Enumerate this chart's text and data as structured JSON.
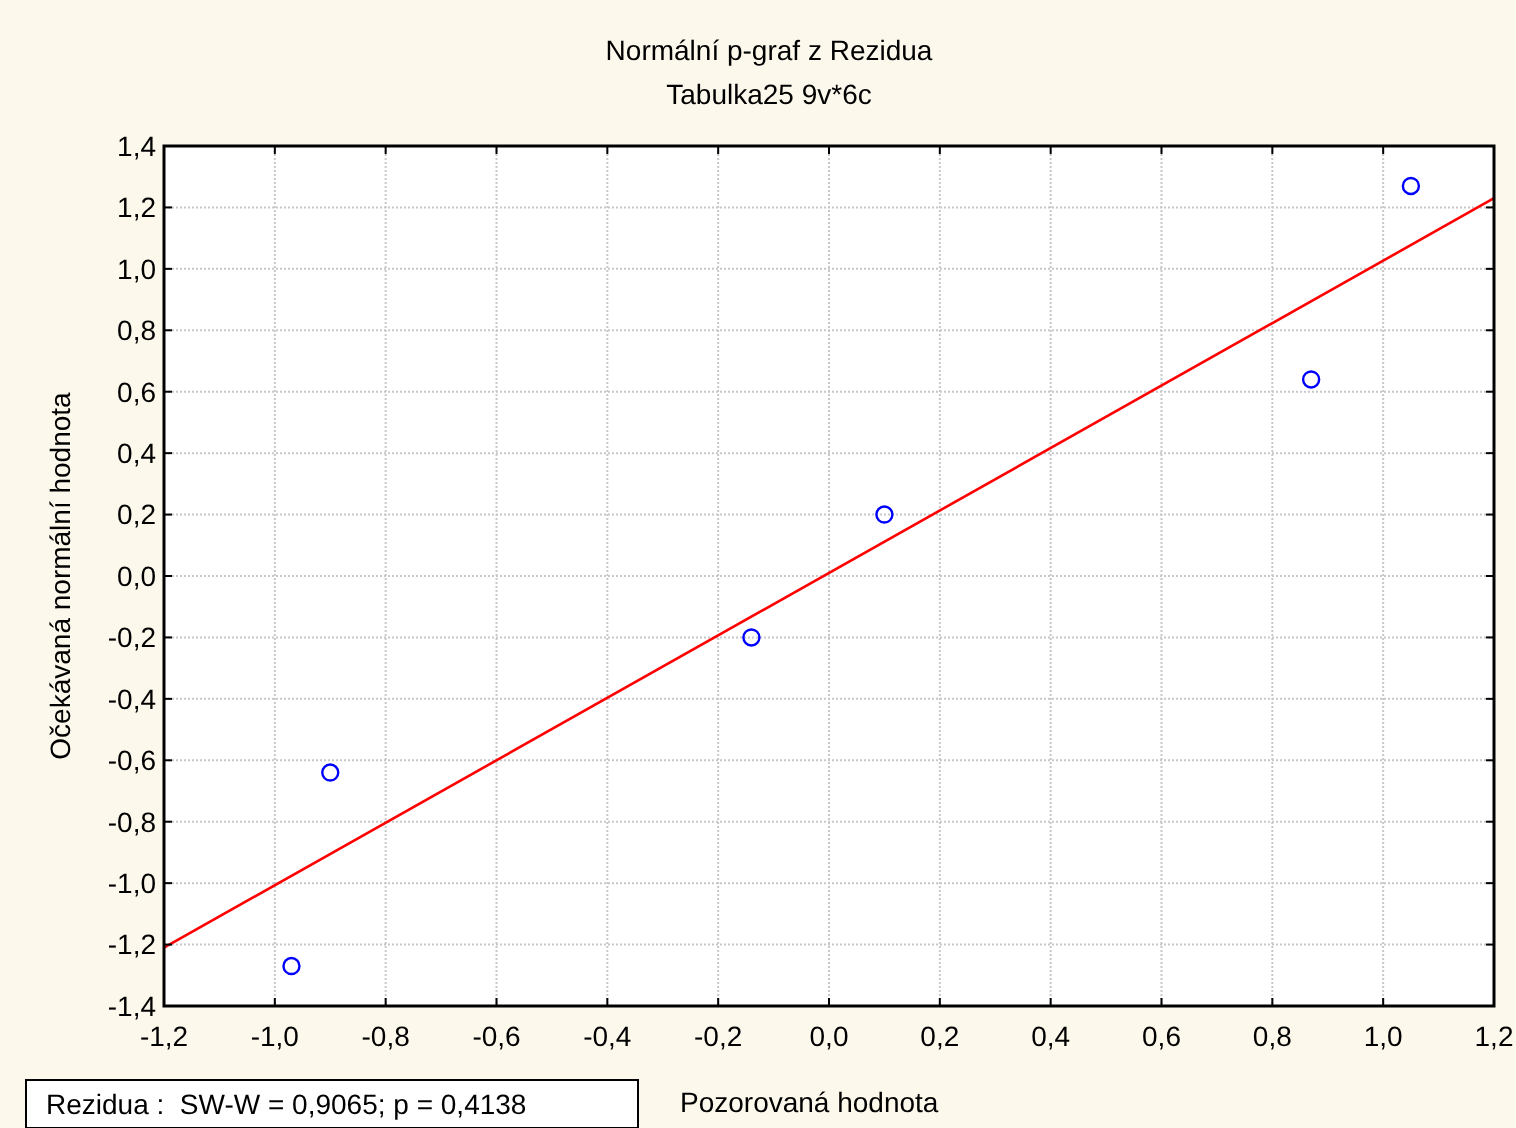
{
  "chart_data": {
    "type": "scatter",
    "title": "Normální p-graf z Rezidua",
    "subtitle": "Tabulka25 9v*6c",
    "xlabel": "Pozorovaná hodnota",
    "ylabel": "Očekávaná normální hodnota",
    "annotations": [
      "Rezidua :  SW-W = 0,9065; p = 0,4138"
    ],
    "xlim": [
      -1.2,
      1.2
    ],
    "ylim": [
      -1.4,
      1.4
    ],
    "xticks": [
      {
        "value": -1.2,
        "label": "-1,2"
      },
      {
        "value": -1.0,
        "label": "-1,0"
      },
      {
        "value": -0.8,
        "label": "-0,8"
      },
      {
        "value": -0.6,
        "label": "-0,6"
      },
      {
        "value": -0.4,
        "label": "-0,4"
      },
      {
        "value": -0.2,
        "label": "-0,2"
      },
      {
        "value": 0,
        "label": "0,0"
      },
      {
        "value": 0.2,
        "label": "0,2"
      },
      {
        "value": 0.4,
        "label": "0,4"
      },
      {
        "value": 0.6,
        "label": "0,6"
      },
      {
        "value": 0.8,
        "label": "0,8"
      },
      {
        "value": 1.0,
        "label": "1,0"
      },
      {
        "value": 1.2,
        "label": "1,2"
      }
    ],
    "yticks": [
      {
        "value": -1.4,
        "label": "-1,4"
      },
      {
        "value": -1.2,
        "label": "-1,2"
      },
      {
        "value": -1.0,
        "label": "-1,0"
      },
      {
        "value": -0.8,
        "label": "-0,8"
      },
      {
        "value": -0.6,
        "label": "-0,6"
      },
      {
        "value": -0.4,
        "label": "-0,4"
      },
      {
        "value": -0.2,
        "label": "-0,2"
      },
      {
        "value": 0,
        "label": "0,0"
      },
      {
        "value": 0.2,
        "label": "0,2"
      },
      {
        "value": 0.4,
        "label": "0,4"
      },
      {
        "value": 0.6,
        "label": "0,6"
      },
      {
        "value": 0.8,
        "label": "0,8"
      },
      {
        "value": 1.0,
        "label": "1,0"
      },
      {
        "value": 1.2,
        "label": "1,2"
      },
      {
        "value": 1.4,
        "label": "1,4"
      }
    ],
    "grid": true,
    "series": [
      {
        "marker": "circle",
        "color": "#0000ff",
        "x": [
          -0.97,
          -0.9,
          -0.14,
          0.1,
          0.87,
          1.05
        ],
        "values": [
          -1.27,
          -0.64,
          -0.2,
          0.2,
          0.64,
          1.27
        ]
      },
      {
        "type": "line",
        "color": "#ff0000",
        "x": [
          -1.2,
          1.2
        ],
        "values": [
          -1.21,
          1.23
        ]
      }
    ]
  }
}
